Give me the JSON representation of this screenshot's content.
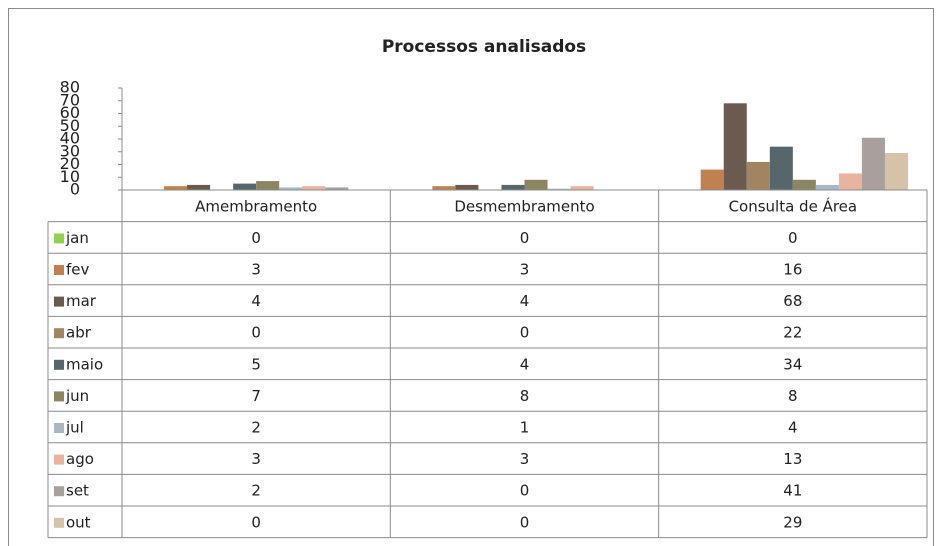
{
  "chart_data": {
    "type": "bar",
    "title": "Processos analisados",
    "categories": [
      "Amembramento",
      "Desmembramento",
      "Consulta de Área"
    ],
    "series": [
      {
        "name": "jan",
        "color": "#92d050",
        "values": [
          0,
          0,
          0
        ]
      },
      {
        "name": "fev",
        "color": "#c0804f",
        "values": [
          3,
          3,
          16
        ]
      },
      {
        "name": "mar",
        "color": "#6b5a4f",
        "values": [
          4,
          4,
          68
        ]
      },
      {
        "name": "abr",
        "color": "#a08660",
        "values": [
          0,
          0,
          22
        ]
      },
      {
        "name": "maio",
        "color": "#56676c",
        "values": [
          5,
          4,
          34
        ]
      },
      {
        "name": "jun",
        "color": "#8b8561",
        "values": [
          7,
          8,
          8
        ]
      },
      {
        "name": "jul",
        "color": "#a9b7c3",
        "values": [
          2,
          1,
          4
        ]
      },
      {
        "name": "ago",
        "color": "#e6b49f",
        "values": [
          3,
          3,
          13
        ]
      },
      {
        "name": "set",
        "color": "#a8a09c",
        "values": [
          2,
          0,
          41
        ]
      },
      {
        "name": "out",
        "color": "#d6c1a9",
        "values": [
          0,
          0,
          29
        ]
      }
    ],
    "ylim": [
      0,
      80
    ],
    "yticks": [
      0,
      10,
      20,
      30,
      40,
      50,
      60,
      70,
      80
    ],
    "data_table": true
  }
}
